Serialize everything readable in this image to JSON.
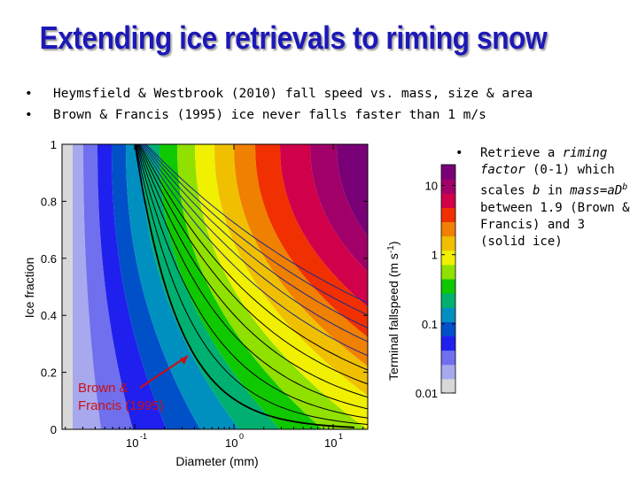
{
  "slide": {
    "title": "Extending ice retrievals to riming snow",
    "bullets": [
      "Heymsfield & Westbrook (2010) fall speed vs. mass, size & area",
      "Brown & Francis (1995) ice never falls faster than 1 m/s"
    ],
    "bullet_symbol": "•",
    "side_note": {
      "pre1": "Retrieve a ",
      "em1": "riming factor",
      "mid1": " (0-1) which scales ",
      "em2": "b",
      "mid2": " in ",
      "em3": "mass=aD",
      "sup": "b",
      "post": " between 1.9 (Brown & Francis) and 3 (solid ice)"
    }
  },
  "chart_data": {
    "type": "heatmap",
    "xlabel": "Diameter (mm)",
    "ylabel": "Ice fraction",
    "xscale": "log",
    "xlim": [
      0.02,
      0.2
    ],
    "x_display_ticks": [
      "10",
      "10",
      "10"
    ],
    "x_tick_exponents": [
      "-1",
      "0",
      "1"
    ],
    "x_tick_values": [
      0.1,
      1,
      10
    ],
    "ylim": [
      0,
      1
    ],
    "y_tick_labels": [
      "0",
      "0.2",
      "0.4",
      "0.6",
      "0.8",
      "1"
    ],
    "y_tick_values": [
      0,
      0.2,
      0.4,
      0.6,
      0.8,
      1
    ],
    "colorbar": {
      "label": "Terminal fallspeed (m s",
      "label_sup": "-1",
      "label_end": ")",
      "scale": "log",
      "tick_labels": [
        "10",
        "1",
        "0.1",
        "0.01"
      ],
      "colors": [
        "#d8d8d8",
        "#a8a8ee",
        "#7070ee",
        "#2020ee",
        "#0050c8",
        "#0090c0",
        "#00b070",
        "#10c800",
        "#90e000",
        "#f0f000",
        "#f0c000",
        "#f08000",
        "#f03000",
        "#d0004a",
        "#a00068",
        "#7a0078"
      ]
    },
    "annotation": {
      "line1": "Brown &",
      "line2": "Francis (1995)",
      "color": "#cc1010"
    },
    "line_color": "#1a2a8a"
  }
}
